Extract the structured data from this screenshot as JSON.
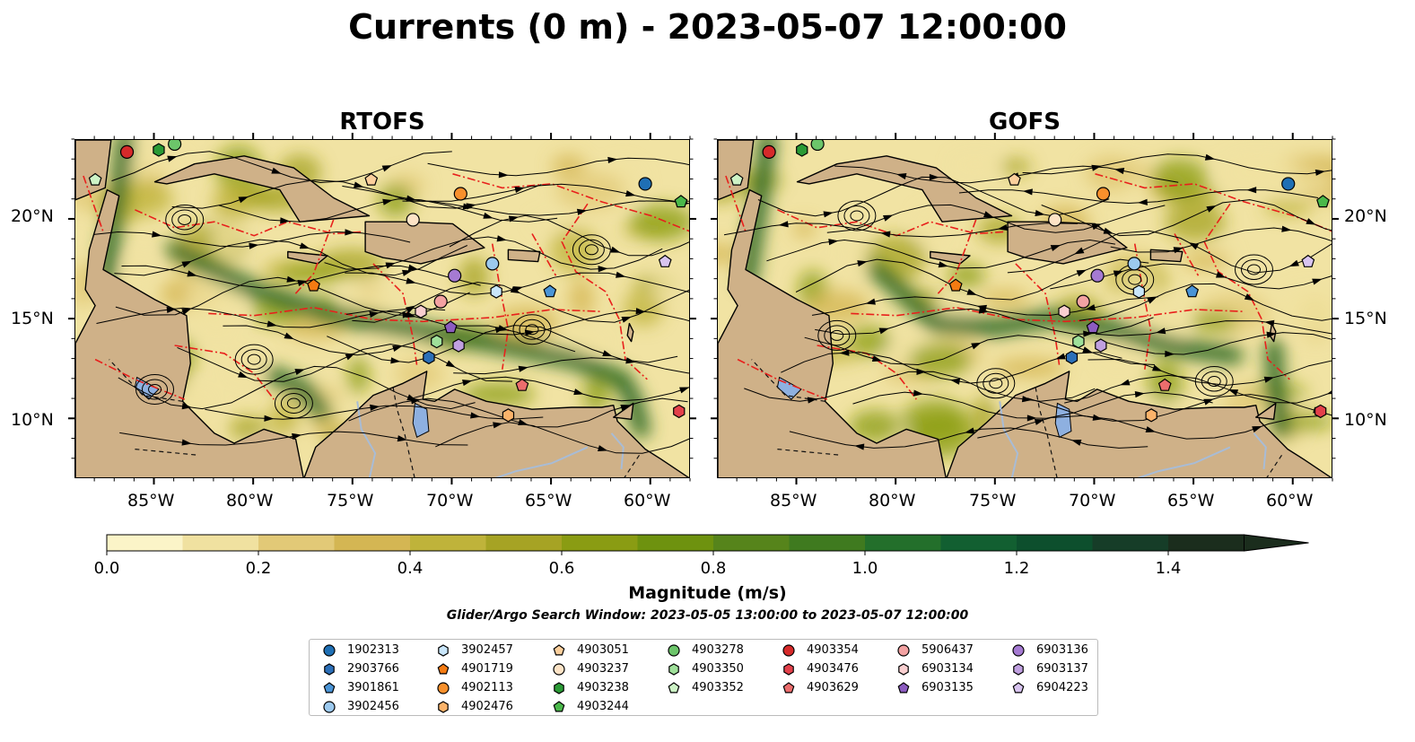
{
  "title": "Currents (0 m) - 2023-05-07 12:00:00",
  "panels": [
    {
      "title": "RTOFS"
    },
    {
      "title": "GOFS"
    }
  ],
  "lon_ticks": [
    "85°W",
    "80°W",
    "75°W",
    "70°W",
    "65°W",
    "60°W"
  ],
  "lat_ticks": [
    "20°N",
    "15°N",
    "10°N"
  ],
  "colorbar": {
    "label": "Magnitude (m/s)",
    "ticks": [
      "0.0",
      "0.2",
      "0.4",
      "0.6",
      "0.8",
      "1.0",
      "1.2",
      "1.4"
    ],
    "range": [
      0,
      1.5
    ],
    "step": 0.1,
    "extend": "max",
    "colors": [
      "#fbf4c8",
      "#f0e1a0",
      "#e2c977",
      "#d4b653",
      "#bfb33a",
      "#a6a324",
      "#8a9c13",
      "#6e920f",
      "#56841b",
      "#3f7a1f",
      "#236f2b",
      "#125f31",
      "#0d4f2d",
      "#163d28",
      "#1b2d1d"
    ]
  },
  "search_window": "Glider/Argo Search Window: 2023-05-05 13:00:00 to 2023-05-07 12:00:00",
  "legend": {
    "columns": [
      [
        {
          "id": "1902313",
          "marker": "circle",
          "color": "#1f6fb4"
        },
        {
          "id": "2903766",
          "marker": "hexagon",
          "color": "#2b6fb8"
        },
        {
          "id": "3901861",
          "marker": "pentagon",
          "color": "#4a94d6"
        },
        {
          "id": "3902456",
          "marker": "circle",
          "color": "#9cc9ee"
        }
      ],
      [
        {
          "id": "3902457",
          "marker": "hexagon",
          "color": "#c9e6fa"
        },
        {
          "id": "4901719",
          "marker": "pentagon",
          "color": "#f47b12"
        },
        {
          "id": "4902113",
          "marker": "circle",
          "color": "#f8902c"
        },
        {
          "id": "4902476",
          "marker": "hexagon",
          "color": "#fbb36a"
        }
      ],
      [
        {
          "id": "4903051",
          "marker": "pentagon",
          "color": "#fbcf9c"
        },
        {
          "id": "4903237",
          "marker": "circle",
          "color": "#fde3c6"
        },
        {
          "id": "4903238",
          "marker": "hexagon",
          "color": "#2a9a35"
        },
        {
          "id": "4903244",
          "marker": "pentagon",
          "color": "#4ab84a"
        }
      ],
      [
        {
          "id": "4903278",
          "marker": "circle",
          "color": "#6cc56a"
        },
        {
          "id": "4903350",
          "marker": "hexagon",
          "color": "#9fe09a"
        },
        {
          "id": "4903352",
          "marker": "pentagon",
          "color": "#cdf3c6"
        }
      ],
      [
        {
          "id": "4903354",
          "marker": "circle",
          "color": "#d62a2a"
        },
        {
          "id": "4903476",
          "marker": "hexagon",
          "color": "#e3404a"
        },
        {
          "id": "4903629",
          "marker": "pentagon",
          "color": "#ec6d6d"
        }
      ],
      [
        {
          "id": "5906437",
          "marker": "circle",
          "color": "#f3a2a2"
        },
        {
          "id": "6903134",
          "marker": "hexagon",
          "color": "#f9cfd0"
        },
        {
          "id": "6903135",
          "marker": "pentagon",
          "color": "#8c5cc0"
        }
      ],
      [
        {
          "id": "6903136",
          "marker": "circle",
          "color": "#a57ad2"
        },
        {
          "id": "6903137",
          "marker": "hexagon",
          "color": "#c0a0e0"
        },
        {
          "id": "6904223",
          "marker": "pentagon",
          "color": "#d8c4f0"
        }
      ]
    ]
  },
  "map_colors": {
    "land": "#cfb188",
    "lake": "#8eb0e0",
    "river": "#a8bcd6",
    "eez_line": "#e8201c",
    "border": "#111111",
    "streamline": "#000000"
  },
  "map_extent": {
    "lon": [
      -89,
      -58
    ],
    "lat": [
      7,
      24
    ]
  }
}
